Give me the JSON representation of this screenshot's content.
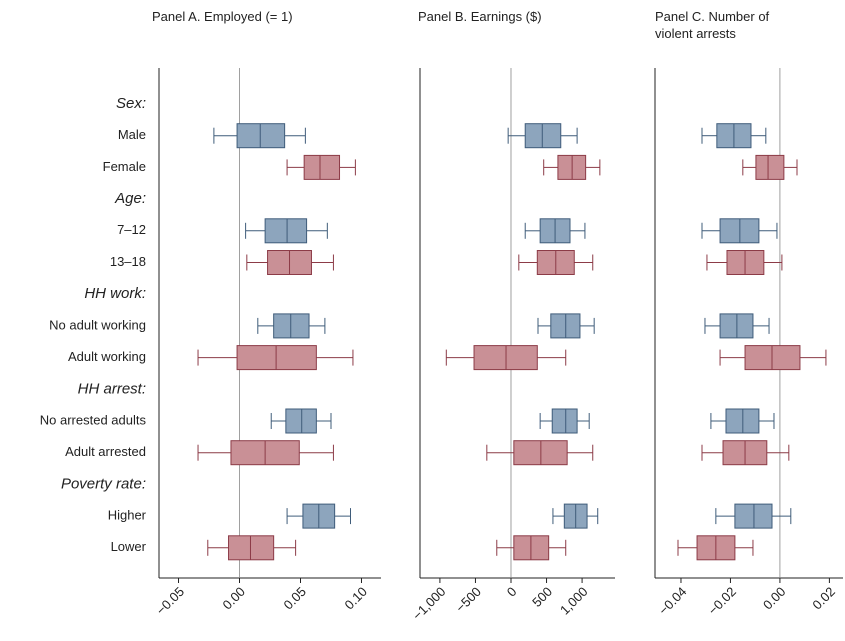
{
  "chart_data": [
    {
      "type": "box",
      "title": "Panel A. Employed (= 1)",
      "groups": [
        {
          "label": "Sex:",
          "categories": [
            "Male",
            "Female"
          ]
        },
        {
          "label": "Age:",
          "categories": [
            "7–12",
            "13–18"
          ]
        },
        {
          "label": "HH work:",
          "categories": [
            "No adult working",
            "Adult working"
          ]
        },
        {
          "label": "HH arrest:",
          "categories": [
            "No arrested adults",
            "Adult arrested"
          ]
        },
        {
          "label": "Poverty rate:",
          "categories": [
            "Higher",
            "Lower"
          ]
        }
      ],
      "values": [
        [
          -0.021,
          -0.002,
          0.017,
          0.037,
          0.054
        ],
        [
          0.039,
          0.053,
          0.066,
          0.082,
          0.095
        ],
        [
          0.005,
          0.021,
          0.039,
          0.055,
          0.072
        ],
        [
          0.006,
          0.023,
          0.041,
          0.059,
          0.077
        ],
        [
          0.015,
          0.028,
          0.042,
          0.057,
          0.07
        ],
        [
          -0.034,
          -0.002,
          0.03,
          0.063,
          0.093
        ],
        [
          0.026,
          0.038,
          0.051,
          0.063,
          0.075
        ],
        [
          -0.034,
          -0.007,
          0.021,
          0.049,
          0.077
        ],
        [
          0.039,
          0.052,
          0.065,
          0.078,
          0.091
        ],
        [
          -0.026,
          -0.009,
          0.009,
          0.028,
          0.046
        ]
      ],
      "colors": [
        "#8da5bd",
        "#c99096",
        "#8da5bd",
        "#c99096",
        "#8da5bd",
        "#c99096",
        "#8da5bd",
        "#c99096",
        "#8da5bd",
        "#c99096"
      ],
      "xlim": [
        -0.066,
        0.116
      ],
      "xticks": [
        {
          "value": -0.05,
          "label": "−0.05"
        },
        {
          "value": 0,
          "label": "0.00"
        },
        0.05,
        {
          "value": 0.1,
          "label": "0.10"
        }
      ]
    },
    {
      "type": "box",
      "title": "Panel B. Earnings ($)",
      "values": [
        [
          -40,
          200,
          440,
          700,
          930
        ],
        [
          460,
          660,
          860,
          1050,
          1250
        ],
        [
          200,
          410,
          620,
          830,
          1040
        ],
        [
          110,
          370,
          630,
          890,
          1150
        ],
        [
          380,
          560,
          770,
          970,
          1170
        ],
        [
          -910,
          -520,
          -70,
          370,
          770
        ],
        [
          410,
          580,
          770,
          930,
          1100
        ],
        [
          -340,
          40,
          420,
          790,
          1150
        ],
        [
          590,
          750,
          910,
          1070,
          1220
        ],
        [
          -200,
          40,
          280,
          530,
          770
        ]
      ],
      "colors": [
        "#8da5bd",
        "#c99096",
        "#8da5bd",
        "#c99096",
        "#8da5bd",
        "#c99096",
        "#8da5bd",
        "#c99096",
        "#8da5bd",
        "#c99096"
      ],
      "xlim": [
        -1280,
        1463
      ],
      "xticks": [
        {
          "value": -1000,
          "label": "−1,000"
        },
        {
          "value": -500,
          "label": "−500"
        },
        0,
        500,
        {
          "value": 1000,
          "label": "1,000"
        }
      ]
    },
    {
      "type": "box",
      "title": "Panel C. Number of violent arrests",
      "values": [
        [
          -0.0315,
          -0.0255,
          -0.0186,
          -0.0117,
          -0.0057
        ],
        [
          -0.015,
          -0.0097,
          -0.0048,
          0.0016,
          0.0069
        ],
        [
          -0.0315,
          -0.0242,
          -0.0162,
          -0.0085,
          -0.0012
        ],
        [
          -0.0295,
          -0.0214,
          -0.0141,
          -0.0065,
          0.0008
        ],
        [
          -0.0303,
          -0.0242,
          -0.0174,
          -0.0109,
          -0.0044
        ],
        [
          -0.0242,
          -0.0141,
          -0.0032,
          0.0081,
          0.0186
        ],
        [
          -0.0279,
          -0.0218,
          -0.015,
          -0.0085,
          -0.0024
        ],
        [
          -0.0315,
          -0.023,
          -0.0141,
          -0.0053,
          0.0036
        ],
        [
          -0.0259,
          -0.0182,
          -0.0105,
          -0.0032,
          0.0044
        ],
        [
          -0.0412,
          -0.0335,
          -0.0259,
          -0.0182,
          -0.0109
        ]
      ],
      "colors": [
        "#8da5bd",
        "#c99096",
        "#8da5bd",
        "#c99096",
        "#8da5bd",
        "#c99096",
        "#8da5bd",
        "#c99096",
        "#8da5bd",
        "#c99096"
      ],
      "xlim": [
        -0.0505,
        0.0255
      ],
      "xticks": [
        {
          "value": -0.04,
          "label": "−0.04"
        },
        {
          "value": -0.02,
          "label": "−0.02"
        },
        {
          "value": 0,
          "label": "0.00"
        },
        0.02
      ]
    }
  ]
}
